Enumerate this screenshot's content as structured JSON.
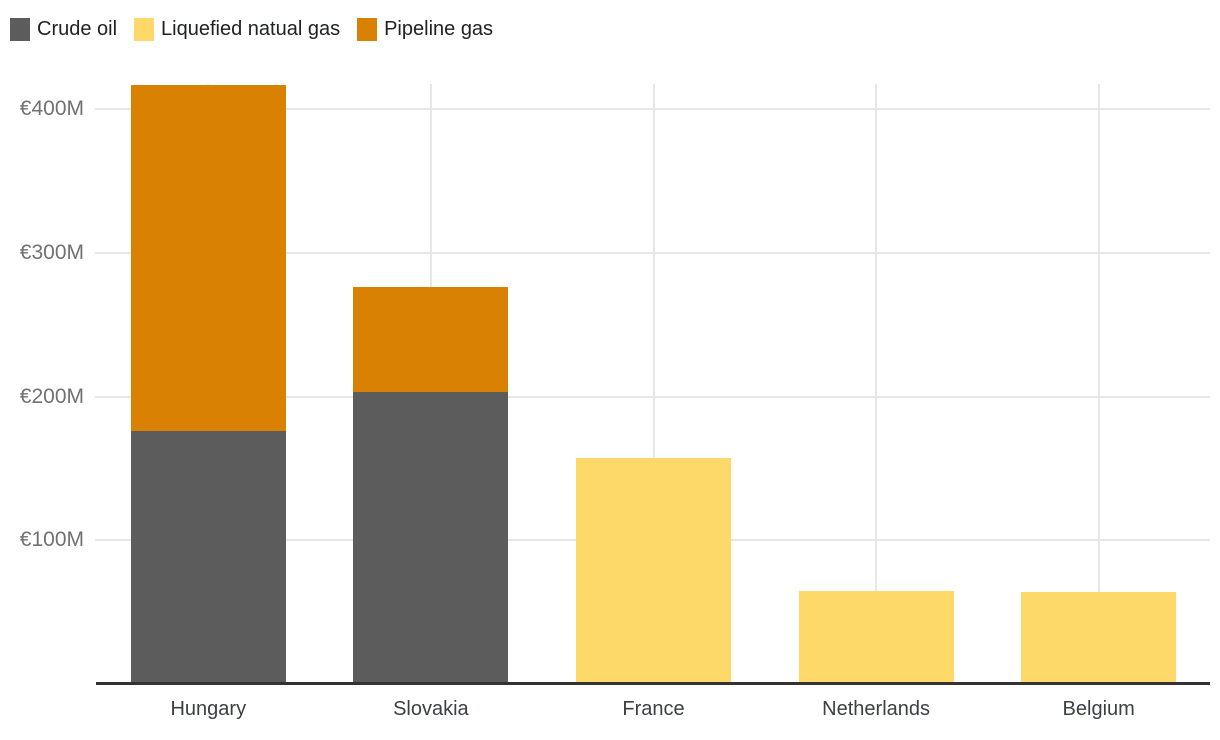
{
  "colors": {
    "crude_oil": "#5C5C5C",
    "lng": "#FDD96A",
    "pipeline_gas": "#D98102",
    "gridline": "#E7E7E7",
    "axis_line": "#333333",
    "y_label_text": "#717171",
    "x_label_text": "#3C4043",
    "legend_text": "#202124",
    "background": "#FFFFFF"
  },
  "legend": {
    "items": [
      {
        "label": "Crude oil",
        "color": "#5C5C5C"
      },
      {
        "label": "Liquefied natual gas",
        "color": "#FDD96A"
      },
      {
        "label": "Pipeline gas",
        "color": "#D98102"
      }
    ]
  },
  "chart_data": {
    "type": "bar",
    "stacked": true,
    "title": "",
    "xlabel": "",
    "ylabel": "",
    "unit": "EUR millions (€M)",
    "categories": [
      "Hungary",
      "Slovakia",
      "France",
      "Netherlands",
      "Belgium"
    ],
    "series": [
      {
        "name": "Crude oil",
        "color": "#5C5C5C",
        "values": [
          176,
          203,
          0,
          0,
          0
        ]
      },
      {
        "name": "Liquefied natual gas",
        "color": "#FDD96A",
        "values": [
          0,
          0,
          157,
          65,
          64
        ]
      },
      {
        "name": "Pipeline gas",
        "color": "#D98102",
        "values": [
          241,
          73,
          0,
          0,
          0
        ]
      }
    ],
    "totals": [
      417,
      276,
      157,
      65,
      64
    ],
    "y_ticks": [
      "€100M",
      "€200M",
      "€300M",
      "€400M"
    ],
    "y_tick_values": [
      100,
      200,
      300,
      400
    ],
    "ylim": [
      0,
      417.5
    ],
    "grid": true,
    "legend_position": "top-left"
  }
}
